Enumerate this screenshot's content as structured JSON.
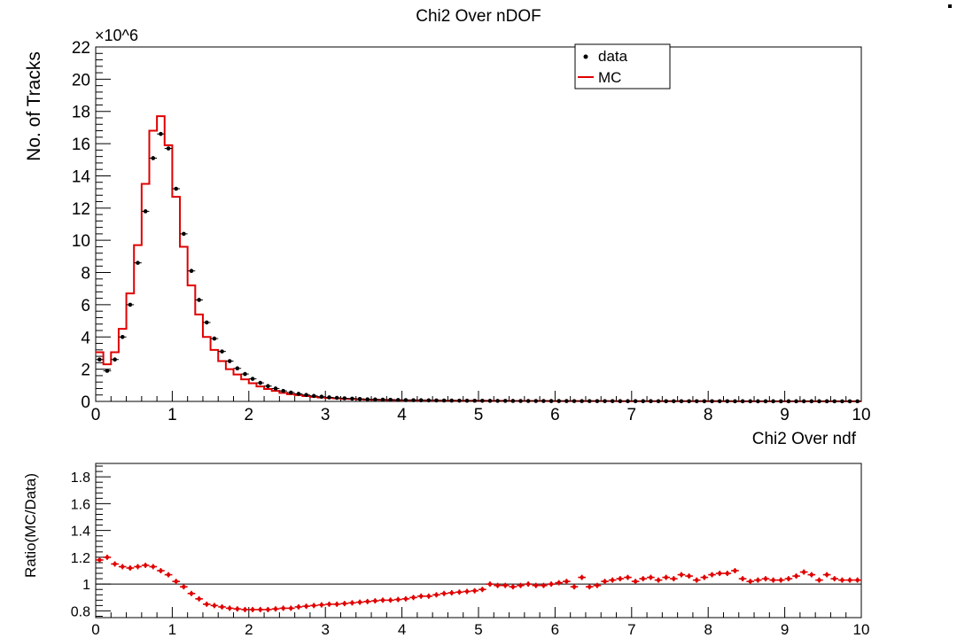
{
  "chart_data": [
    {
      "type": "histogram",
      "title": "Chi2 Over nDOF",
      "xlabel": "Chi2 Over ndf",
      "ylabel": "No. of Tracks",
      "yexponent": "×10^6",
      "xlim": [
        0,
        10
      ],
      "ylim": [
        0,
        22
      ],
      "xticks": [
        "0",
        "1",
        "2",
        "3",
        "4",
        "5",
        "6",
        "7",
        "8",
        "9",
        "10"
      ],
      "yticks": [
        "0",
        "2",
        "4",
        "6",
        "8",
        "10",
        "12",
        "14",
        "16",
        "18",
        "20",
        "22"
      ],
      "legend": {
        "position": "top-right",
        "entries": [
          "data",
          "MC"
        ]
      },
      "bin_width": 0.1,
      "series": [
        {
          "name": "data",
          "style": "points",
          "color": "#000000",
          "x": [
            0.05,
            0.15,
            0.25,
            0.35,
            0.45,
            0.55,
            0.65,
            0.75,
            0.85,
            0.95,
            1.05,
            1.15,
            1.25,
            1.35,
            1.45,
            1.55,
            1.65,
            1.75,
            1.85,
            1.95,
            2.05,
            2.15,
            2.25,
            2.35,
            2.45,
            2.55,
            2.65,
            2.75,
            2.85,
            2.95,
            3.05,
            3.15,
            3.25,
            3.35,
            3.45,
            3.55,
            3.65,
            3.75,
            3.85,
            3.95,
            4.05,
            4.15,
            4.25,
            4.35,
            4.45,
            4.55,
            4.65,
            4.75,
            4.85,
            4.95,
            5.05,
            5.15,
            5.25,
            5.35,
            5.45,
            5.55,
            5.65,
            5.75,
            5.85,
            5.95,
            6.05,
            6.15,
            6.25,
            6.35,
            6.45,
            6.55,
            6.65,
            6.75,
            6.85,
            6.95,
            7.05,
            7.15,
            7.25,
            7.35,
            7.45,
            7.55,
            7.65,
            7.75,
            7.85,
            7.95,
            8.05,
            8.15,
            8.25,
            8.35,
            8.45,
            8.55,
            8.65,
            8.75,
            8.85,
            8.95,
            9.05,
            9.15,
            9.25,
            9.35,
            9.45,
            9.55,
            9.65,
            9.75,
            9.85,
            9.95
          ],
          "y": [
            2.6,
            1.9,
            2.6,
            4.0,
            6.0,
            8.6,
            11.8,
            15.1,
            16.6,
            15.7,
            13.2,
            10.4,
            8.1,
            6.3,
            4.9,
            3.9,
            3.1,
            2.5,
            2.05,
            1.7,
            1.4,
            1.15,
            0.95,
            0.8,
            0.65,
            0.55,
            0.47,
            0.4,
            0.34,
            0.29,
            0.25,
            0.22,
            0.19,
            0.17,
            0.15,
            0.13,
            0.12,
            0.11,
            0.1,
            0.09,
            0.08,
            0.075,
            0.07,
            0.065,
            0.06,
            0.055,
            0.05,
            0.047,
            0.044,
            0.041,
            0.038,
            0.036,
            0.034,
            0.032,
            0.03,
            0.028,
            0.027,
            0.026,
            0.025,
            0.024,
            0.023,
            0.022,
            0.021,
            0.02,
            0.02,
            0.019,
            0.018,
            0.018,
            0.017,
            0.016,
            0.016,
            0.015,
            0.015,
            0.014,
            0.014,
            0.013,
            0.013,
            0.012,
            0.012,
            0.012,
            0.011,
            0.011,
            0.011,
            0.01,
            0.01,
            0.01,
            0.01,
            0.009,
            0.009,
            0.009,
            0.009,
            0.008,
            0.008,
            0.008,
            0.008,
            0.008,
            0.007,
            0.007,
            0.007,
            0.007
          ]
        },
        {
          "name": "MC",
          "style": "step",
          "color": "#e00000",
          "y": [
            3.05,
            2.3,
            3.05,
            4.5,
            6.7,
            9.7,
            13.5,
            16.8,
            17.7,
            15.9,
            12.7,
            9.6,
            7.2,
            5.4,
            4.0,
            3.2,
            2.5,
            2.0,
            1.67,
            1.37,
            1.13,
            0.93,
            0.77,
            0.65,
            0.53,
            0.45,
            0.39,
            0.33,
            0.28,
            0.24,
            0.21,
            0.19,
            0.16,
            0.15,
            0.13,
            0.11,
            0.1,
            0.095,
            0.087,
            0.079,
            0.071,
            0.068,
            0.064,
            0.06,
            0.055,
            0.051,
            0.047,
            0.044,
            0.042,
            0.039,
            0.038,
            0.036,
            0.034,
            0.032,
            0.03,
            0.028,
            0.027,
            0.026,
            0.025,
            0.024,
            0.023,
            0.022,
            0.021,
            0.02,
            0.02,
            0.019,
            0.018,
            0.018,
            0.017,
            0.016,
            0.016,
            0.015,
            0.015,
            0.014,
            0.014,
            0.013,
            0.013,
            0.012,
            0.012,
            0.012,
            0.011,
            0.011,
            0.011,
            0.01,
            0.01,
            0.01,
            0.01,
            0.009,
            0.009,
            0.009,
            0.009,
            0.008,
            0.008,
            0.008,
            0.008,
            0.008,
            0.007,
            0.007,
            0.007,
            0.007
          ]
        }
      ]
    },
    {
      "type": "scatter",
      "xlabel": "",
      "ylabel": "Ratio(MC/Data)",
      "xlim": [
        0,
        10
      ],
      "ylim": [
        0.75,
        1.9
      ],
      "xticks": [
        "0",
        "1",
        "2",
        "3",
        "4",
        "5",
        "6",
        "7",
        "8",
        "9",
        "10"
      ],
      "yticks": [
        {
          "value": 0.8,
          "label": "0.8"
        },
        {
          "value": 1.0,
          "label": "1"
        },
        {
          "value": 1.2,
          "label": "1.2"
        },
        {
          "value": 1.4,
          "label": "1.4"
        },
        {
          "value": 1.6,
          "label": "1.6"
        },
        {
          "value": 1.8,
          "label": "1.8"
        }
      ],
      "reference_line": 1.0,
      "series": [
        {
          "name": "MC/Data",
          "color": "#e00000",
          "x": [
            0.05,
            0.15,
            0.25,
            0.35,
            0.45,
            0.55,
            0.65,
            0.75,
            0.85,
            0.95,
            1.05,
            1.15,
            1.25,
            1.35,
            1.45,
            1.55,
            1.65,
            1.75,
            1.85,
            1.95,
            2.05,
            2.15,
            2.25,
            2.35,
            2.45,
            2.55,
            2.65,
            2.75,
            2.85,
            2.95,
            3.05,
            3.15,
            3.25,
            3.35,
            3.45,
            3.55,
            3.65,
            3.75,
            3.85,
            3.95,
            4.05,
            4.15,
            4.25,
            4.35,
            4.45,
            4.55,
            4.65,
            4.75,
            4.85,
            4.95,
            5.05,
            5.15,
            5.25,
            5.35,
            5.45,
            5.55,
            5.65,
            5.75,
            5.85,
            5.95,
            6.05,
            6.15,
            6.25,
            6.35,
            6.45,
            6.55,
            6.65,
            6.75,
            6.85,
            6.95,
            7.05,
            7.15,
            7.25,
            7.35,
            7.45,
            7.55,
            7.65,
            7.75,
            7.85,
            7.95,
            8.05,
            8.15,
            8.25,
            8.35,
            8.45,
            8.55,
            8.65,
            8.75,
            8.85,
            8.95,
            9.05,
            9.15,
            9.25,
            9.35,
            9.45,
            9.55,
            9.65,
            9.75,
            9.85,
            9.95
          ],
          "y": [
            1.18,
            1.2,
            1.15,
            1.13,
            1.12,
            1.13,
            1.14,
            1.13,
            1.1,
            1.07,
            1.02,
            0.98,
            0.93,
            0.89,
            0.85,
            0.84,
            0.83,
            0.82,
            0.815,
            0.81,
            0.81,
            0.81,
            0.81,
            0.815,
            0.82,
            0.82,
            0.83,
            0.835,
            0.84,
            0.845,
            0.85,
            0.85,
            0.855,
            0.86,
            0.865,
            0.87,
            0.875,
            0.88,
            0.88,
            0.885,
            0.89,
            0.9,
            0.91,
            0.91,
            0.92,
            0.93,
            0.935,
            0.94,
            0.945,
            0.95,
            0.96,
            1.0,
            0.99,
            0.99,
            0.98,
            0.99,
            1.0,
            0.99,
            0.99,
            1.0,
            1.01,
            1.02,
            0.98,
            1.05,
            0.98,
            0.99,
            1.02,
            1.03,
            1.04,
            1.05,
            1.02,
            1.04,
            1.05,
            1.03,
            1.05,
            1.04,
            1.07,
            1.06,
            1.03,
            1.05,
            1.07,
            1.08,
            1.08,
            1.1,
            1.04,
            1.02,
            1.03,
            1.04,
            1.03,
            1.03,
            1.04,
            1.06,
            1.09,
            1.07,
            1.03,
            1.07,
            1.04,
            1.03,
            1.03,
            1.03
          ]
        }
      ]
    }
  ]
}
